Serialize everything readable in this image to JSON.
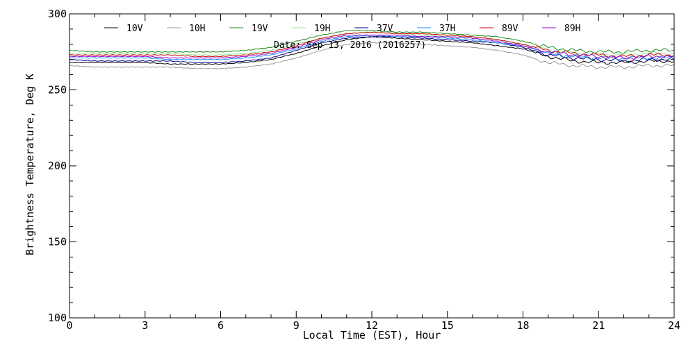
{
  "chart_data": {
    "type": "line",
    "xlabel": "Local Time (EST), Hour",
    "ylabel": "Brightness Temperature, Deg K",
    "annotation": "Date: Sep 13, 2016 (2016257)",
    "xlim": [
      0,
      24
    ],
    "ylim": [
      100,
      300
    ],
    "xticks": [
      0,
      3,
      6,
      9,
      12,
      15,
      18,
      21,
      24
    ],
    "yticks": [
      100,
      150,
      200,
      250,
      300
    ],
    "grid": false,
    "legend_position": "top",
    "x": [
      0,
      1,
      2,
      3,
      4,
      5,
      6,
      7,
      8,
      9,
      10,
      11,
      12,
      13,
      14,
      15,
      16,
      17,
      18,
      19,
      20,
      21,
      22,
      23,
      24
    ],
    "series": [
      {
        "name": "10V",
        "color": "#000000",
        "values": [
          268,
          268,
          268,
          268,
          267,
          267,
          267,
          268,
          270,
          274,
          279,
          283,
          285,
          284,
          283,
          282,
          281,
          279,
          277,
          272,
          269,
          268,
          268,
          269,
          269
        ]
      },
      {
        "name": "10H",
        "color": "#9a9a9a",
        "values": [
          266,
          265,
          265,
          265,
          265,
          264,
          264,
          265,
          267,
          271,
          276,
          280,
          281,
          281,
          280,
          279,
          278,
          276,
          273,
          268,
          266,
          265,
          265,
          266,
          266
        ]
      },
      {
        "name": "19V",
        "color": "#1f8a1f",
        "values": [
          276,
          275,
          275,
          275,
          275,
          275,
          275,
          276,
          278,
          282,
          286,
          289,
          289,
          288,
          288,
          287,
          286,
          285,
          282,
          278,
          276,
          275,
          275,
          276,
          276
        ]
      },
      {
        "name": "19H",
        "color": "#90ee90",
        "values": [
          274,
          274,
          274,
          274,
          274,
          273,
          273,
          274,
          276,
          280,
          284,
          287,
          288,
          287,
          286,
          285,
          285,
          283,
          280,
          276,
          274,
          273,
          273,
          274,
          274
        ]
      },
      {
        "name": "37V",
        "color": "#00008b",
        "values": [
          270,
          269,
          269,
          269,
          269,
          268,
          268,
          269,
          271,
          276,
          281,
          284,
          285,
          285,
          284,
          283,
          282,
          281,
          278,
          273,
          271,
          270,
          269,
          270,
          270
        ]
      },
      {
        "name": "37H",
        "color": "#1e90ff",
        "values": [
          271,
          271,
          271,
          271,
          270,
          270,
          270,
          271,
          273,
          277,
          282,
          285,
          286,
          285,
          285,
          284,
          283,
          281,
          279,
          274,
          272,
          271,
          271,
          271,
          271
        ]
      },
      {
        "name": "89V",
        "color": "#cc0000",
        "values": [
          273,
          273,
          273,
          273,
          273,
          272,
          272,
          273,
          275,
          279,
          284,
          287,
          288,
          287,
          287,
          286,
          285,
          283,
          280,
          276,
          274,
          273,
          272,
          273,
          273
        ]
      },
      {
        "name": "89H",
        "color": "#9b00d3",
        "values": [
          272,
          272,
          272,
          272,
          271,
          271,
          271,
          272,
          274,
          278,
          283,
          286,
          286,
          286,
          285,
          285,
          284,
          282,
          279,
          275,
          273,
          272,
          271,
          272,
          272
        ]
      }
    ]
  }
}
